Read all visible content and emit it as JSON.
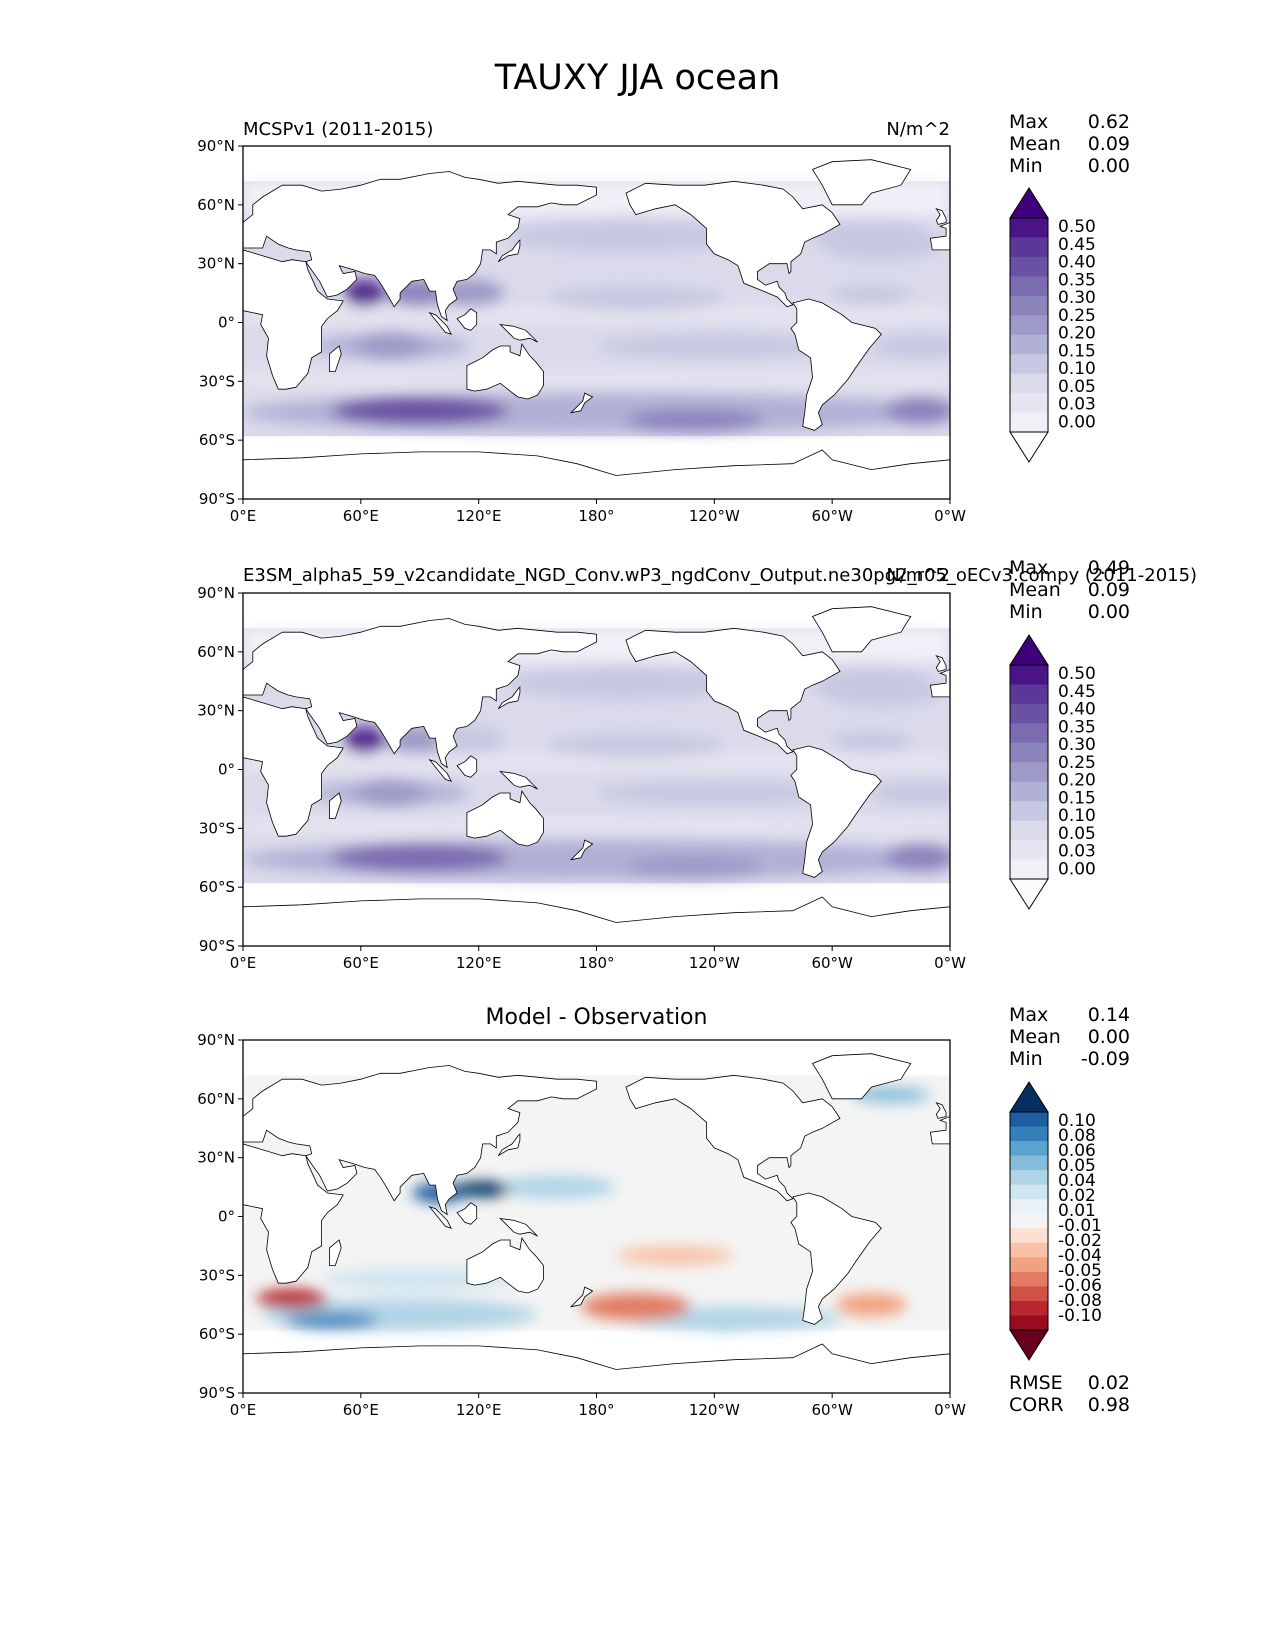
{
  "figure": {
    "title": "TAUXY JJA ocean"
  },
  "colors": {
    "purples": [
      "#fcfbfd",
      "#f2f0f7",
      "#e6e5f1",
      "#dadaeb",
      "#c6c7e1",
      "#b1b0d5",
      "#9e9ac8",
      "#8b84bd",
      "#7b6bb0",
      "#6a51a3",
      "#5b3897",
      "#4a1486",
      "#3f007d"
    ],
    "rdbu_neg": [
      "#fde0d2",
      "#f8c2a8",
      "#f2a27f",
      "#e27b62",
      "#cf5246",
      "#b8282e",
      "#980d22",
      "#67001f"
    ],
    "rdbu_pos": [
      "#e7f1f7",
      "#d1e5f0",
      "#b0d4e6",
      "#85bcda",
      "#5ba3cf",
      "#3480ba",
      "#1d5ea3",
      "#053061"
    ],
    "neutral": "#f4f4f4",
    "coast": "#000000"
  },
  "panels": [
    {
      "left_title": "MCSPv1 (2011-2015)",
      "center_title": "",
      "right_title": "N/m^2",
      "stats": {
        "labels": [
          "Max",
          "Mean",
          "Min"
        ],
        "values": [
          "0.62",
          "0.09",
          "0.00"
        ]
      },
      "colorbar_ticks": [
        "0.50",
        "0.45",
        "0.40",
        "0.35",
        "0.30",
        "0.25",
        "0.20",
        "0.15",
        "0.10",
        "0.05",
        "0.03",
        "0.00"
      ]
    },
    {
      "left_title": "E3SM_alpha5_59_v2candidate_NGD_Conv.wP3_ngdConv_Output.ne30pg2_r05_oECv3.compy (2011-2015)",
      "center_title": "",
      "right_title": "N/m^2",
      "stats": {
        "labels": [
          "Max",
          "Mean",
          "Min"
        ],
        "values": [
          "0.49",
          "0.09",
          "0.00"
        ]
      },
      "colorbar_ticks": [
        "0.50",
        "0.45",
        "0.40",
        "0.35",
        "0.30",
        "0.25",
        "0.20",
        "0.15",
        "0.10",
        "0.05",
        "0.03",
        "0.00"
      ]
    },
    {
      "left_title": "",
      "center_title": "Model - Observation",
      "right_title": "",
      "stats": {
        "labels": [
          "Max",
          "Mean",
          "Min"
        ],
        "values": [
          "0.14",
          "0.00",
          "-0.09"
        ]
      },
      "colorbar_ticks": [
        "0.10",
        "0.08",
        "0.06",
        "0.05",
        "0.04",
        "0.02",
        "0.01",
        "-0.01",
        "-0.02",
        "-0.04",
        "-0.05",
        "-0.06",
        "-0.08",
        "-0.10"
      ],
      "metrics": {
        "labels": [
          "RMSE",
          "CORR"
        ],
        "values": [
          "0.02",
          "0.98"
        ]
      }
    }
  ],
  "chart_data": [
    {
      "type": "heatmap",
      "title": "MCSPv1 (2011-2015)",
      "units": "N/m^2",
      "xlabel": "",
      "ylabel": "",
      "x_ticks": [
        "0°E",
        "60°E",
        "120°E",
        "180°",
        "120°W",
        "60°W",
        "0°W"
      ],
      "y_ticks": [
        "90°N",
        "60°N",
        "30°N",
        "0°",
        "30°S",
        "60°S",
        "90°S"
      ],
      "xlim": [
        0,
        360
      ],
      "ylim": [
        -90,
        90
      ],
      "levels": [
        0.0,
        0.03,
        0.05,
        0.1,
        0.15,
        0.2,
        0.25,
        0.3,
        0.35,
        0.4,
        0.45,
        0.5
      ],
      "features": [
        {
          "name": "southern-ocean-storm-track",
          "lon": 90,
          "lat": -45,
          "value": 0.35
        },
        {
          "name": "arabian-sea-jet",
          "lon": 62,
          "lat": 15,
          "value": 0.45
        },
        {
          "name": "bay-of-bengal",
          "lon": 90,
          "lat": 15,
          "value": 0.25
        },
        {
          "name": "south-china-sea",
          "lon": 115,
          "lat": 15,
          "value": 0.2
        },
        {
          "name": "south-indian-trades",
          "lon": 75,
          "lat": -12,
          "value": 0.2
        },
        {
          "name": "south-pacific",
          "lon": 230,
          "lat": -50,
          "value": 0.25
        },
        {
          "name": "south-atlantic",
          "lon": 345,
          "lat": -45,
          "value": 0.25
        },
        {
          "name": "north-atlantic",
          "lon": 325,
          "lat": 40,
          "value": 0.12
        },
        {
          "name": "north-pacific",
          "lon": 195,
          "lat": 45,
          "value": 0.1
        }
      ]
    },
    {
      "type": "heatmap",
      "title": "E3SM_alpha5_59_v2candidate_NGD_Conv.wP3_ngdConv_Output.ne30pg2_r05_oECv3.compy (2011-2015)",
      "units": "N/m^2",
      "xlabel": "",
      "ylabel": "",
      "x_ticks": [
        "0°E",
        "60°E",
        "120°E",
        "180°",
        "120°W",
        "60°W",
        "0°W"
      ],
      "y_ticks": [
        "90°N",
        "60°N",
        "30°N",
        "0°",
        "30°S",
        "60°S",
        "90°S"
      ],
      "xlim": [
        0,
        360
      ],
      "ylim": [
        -90,
        90
      ],
      "levels": [
        0.0,
        0.03,
        0.05,
        0.1,
        0.15,
        0.2,
        0.25,
        0.3,
        0.35,
        0.4,
        0.45,
        0.5
      ],
      "features": [
        {
          "name": "southern-ocean-storm-track",
          "lon": 90,
          "lat": -45,
          "value": 0.3
        },
        {
          "name": "arabian-sea-jet",
          "lon": 62,
          "lat": 15,
          "value": 0.45
        },
        {
          "name": "bay-of-bengal",
          "lon": 90,
          "lat": 15,
          "value": 0.2
        },
        {
          "name": "south-china-sea",
          "lon": 115,
          "lat": 15,
          "value": 0.12
        },
        {
          "name": "south-indian-trades",
          "lon": 75,
          "lat": -12,
          "value": 0.2
        },
        {
          "name": "south-pacific",
          "lon": 230,
          "lat": -50,
          "value": 0.2
        },
        {
          "name": "south-atlantic",
          "lon": 345,
          "lat": -45,
          "value": 0.25
        },
        {
          "name": "north-atlantic",
          "lon": 325,
          "lat": 40,
          "value": 0.1
        },
        {
          "name": "north-pacific",
          "lon": 195,
          "lat": 45,
          "value": 0.1
        }
      ]
    },
    {
      "type": "heatmap",
      "title": "Model - Observation",
      "units": "N/m^2",
      "xlabel": "",
      "ylabel": "",
      "x_ticks": [
        "0°E",
        "60°E",
        "120°E",
        "180°",
        "120°W",
        "60°W",
        "0°W"
      ],
      "y_ticks": [
        "90°N",
        "60°N",
        "30°N",
        "0°",
        "30°S",
        "60°S",
        "90°S"
      ],
      "xlim": [
        0,
        360
      ],
      "ylim": [
        -90,
        90
      ],
      "levels": [
        -0.1,
        -0.08,
        -0.06,
        -0.05,
        -0.04,
        -0.02,
        -0.01,
        0.01,
        0.02,
        0.04,
        0.05,
        0.06,
        0.08,
        0.1
      ],
      "features": [
        {
          "name": "bay-of-bengal-diff",
          "lon": 100,
          "lat": 12,
          "value": 0.08
        },
        {
          "name": "south-china-sea-diff",
          "lon": 122,
          "lat": 14,
          "value": 0.1
        },
        {
          "name": "southern-indian-diff",
          "lon": 45,
          "lat": -53,
          "value": 0.06
        },
        {
          "name": "south-atlantic-neg",
          "lon": 25,
          "lat": -42,
          "value": -0.06
        },
        {
          "name": "south-pacific-neg",
          "lon": 200,
          "lat": -46,
          "value": -0.04
        },
        {
          "name": "south-pacific-pos",
          "lon": 245,
          "lat": -53,
          "value": 0.03
        },
        {
          "name": "southeast-pacific-neg",
          "lon": 320,
          "lat": -45,
          "value": -0.02
        }
      ]
    }
  ],
  "stat_labels": {}
}
